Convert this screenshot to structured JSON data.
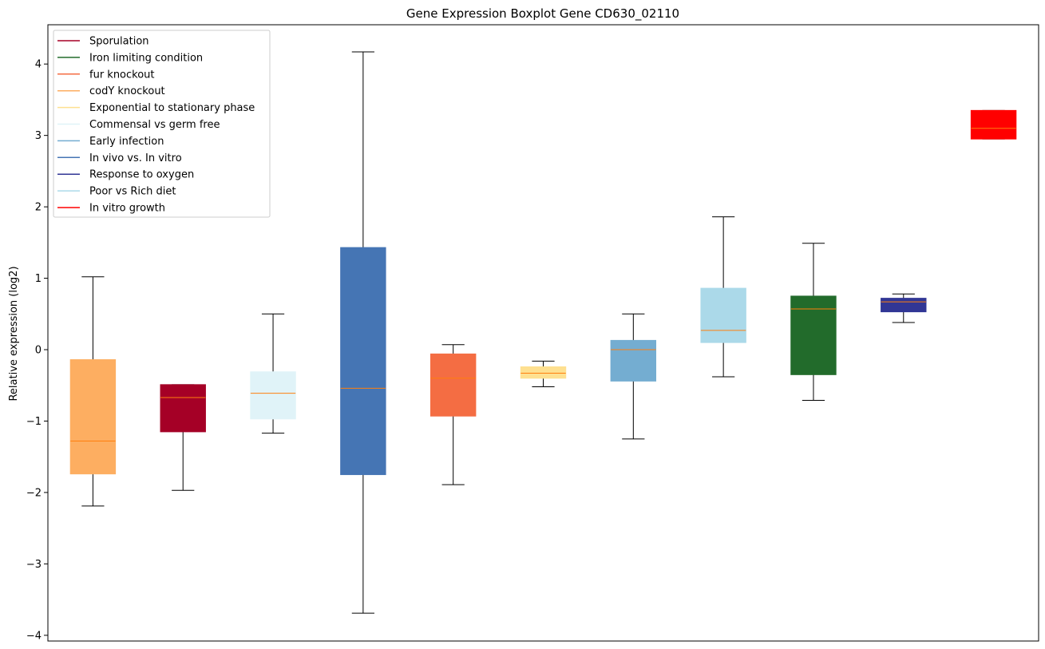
{
  "chart_data": {
    "type": "boxplot",
    "title": "Gene Expression Boxplot Gene CD630_02110",
    "xlabel": "",
    "ylabel": "Relative expression (log2)",
    "ylim": [
      -4.08,
      4.55
    ],
    "yticks": [
      -4,
      -3,
      -2,
      -1,
      0,
      1,
      2,
      3,
      4
    ],
    "ytick_labels": [
      "−4",
      "−3",
      "−2",
      "−1",
      "0",
      "1",
      "2",
      "3",
      "4"
    ],
    "grid": false,
    "legend_position": "top-left",
    "median_color": "#ff7f0e",
    "series": [
      {
        "name": "Sporulation",
        "color": "#a50026"
      },
      {
        "name": "Iron limiting condition",
        "color": "#226b2b"
      },
      {
        "name": "fur knockout",
        "color": "#f46d43"
      },
      {
        "name": "codY knockout",
        "color": "#fdae61"
      },
      {
        "name": "Exponential to stationary phase",
        "color": "#fee090"
      },
      {
        "name": "Commensal vs germ free",
        "color": "#e0f3f8"
      },
      {
        "name": "Early infection",
        "color": "#74add1"
      },
      {
        "name": "In vivo vs. In vitro",
        "color": "#4575b4"
      },
      {
        "name": "Response to oxygen",
        "color": "#313695"
      },
      {
        "name": "Poor vs Rich diet",
        "color": "#abd9e9"
      },
      {
        "name": "In vitro growth",
        "color": "#ff0000"
      }
    ],
    "boxes": [
      {
        "series": "codY knockout",
        "color": "#fdae61",
        "whislo": -2.19,
        "q1": -1.74,
        "med": -1.28,
        "q3": -0.14,
        "whishi": 1.02
      },
      {
        "series": "Sporulation",
        "color": "#a50026",
        "whislo": -1.97,
        "q1": -1.15,
        "med": -0.67,
        "q3": -0.49,
        "whishi": -0.49
      },
      {
        "series": "Commensal vs germ free",
        "color": "#e0f3f8",
        "whislo": -1.17,
        "q1": -0.97,
        "med": -0.61,
        "q3": -0.31,
        "whishi": 0.5
      },
      {
        "series": "In vivo vs. In vitro",
        "color": "#4575b4",
        "whislo": -3.69,
        "q1": -1.75,
        "med": -0.54,
        "q3": 1.43,
        "whishi": 4.17
      },
      {
        "series": "fur knockout",
        "color": "#f46d43",
        "whislo": -1.89,
        "q1": -0.93,
        "med": -0.4,
        "q3": -0.06,
        "whishi": 0.07
      },
      {
        "series": "Exponential to stationary phase",
        "color": "#fee090",
        "whislo": -0.52,
        "q1": -0.4,
        "med": -0.33,
        "q3": -0.24,
        "whishi": -0.16
      },
      {
        "series": "Early infection",
        "color": "#74add1",
        "whislo": -1.25,
        "q1": -0.44,
        "med": 0.0,
        "q3": 0.13,
        "whishi": 0.5
      },
      {
        "series": "Poor vs Rich diet",
        "color": "#abd9e9",
        "whislo": -0.38,
        "q1": 0.1,
        "med": 0.27,
        "q3": 0.86,
        "whishi": 1.86
      },
      {
        "series": "Iron limiting condition",
        "color": "#226b2b",
        "whislo": -0.71,
        "q1": -0.35,
        "med": 0.57,
        "q3": 0.75,
        "whishi": 1.49
      },
      {
        "series": "Response to oxygen",
        "color": "#313695",
        "whislo": 0.38,
        "q1": 0.53,
        "med": 0.67,
        "q3": 0.72,
        "whishi": 0.78
      },
      {
        "series": "In vitro growth",
        "color": "#ff0000",
        "whislo": 2.95,
        "q1": 2.95,
        "med": 3.1,
        "q3": 3.35,
        "whishi": 3.35
      }
    ]
  }
}
